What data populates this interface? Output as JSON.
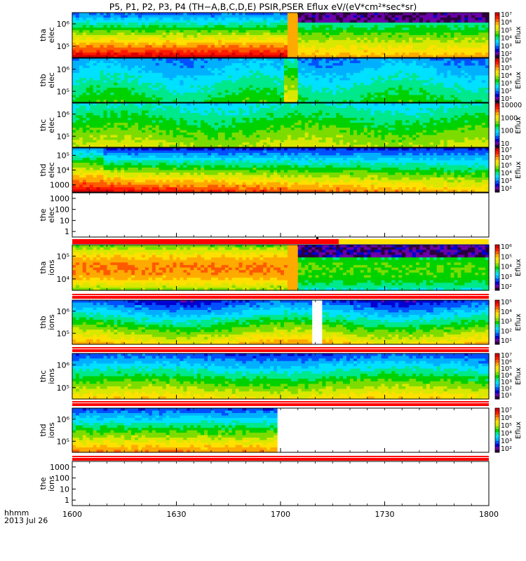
{
  "title": "P5, P1, P2, P3, P4 (TH−A,B,C,D,E) PSIR,PSER Eflux eV/(eV*cm²*sec*sr)",
  "time_axis_label": "hhmm",
  "date_label": "2013 Jul 26",
  "colormap": [
    "#2a003a",
    "#6a00a8",
    "#0000d0",
    "#0050ff",
    "#00b0ff",
    "#00e0ff",
    "#00e88c",
    "#00d200",
    "#7cdc00",
    "#d8e800",
    "#ffe000",
    "#ffaa00",
    "#ff5a00",
    "#ff1a00",
    "#d80000"
  ],
  "chart_data": {
    "type": "heatmap",
    "x_ticks": [
      "1600",
      "1630",
      "1700",
      "1730",
      "1800"
    ],
    "x_range": [
      "16:00",
      "18:00"
    ],
    "y_scale": "log",
    "panels": [
      {
        "probe": "tha",
        "species": "elec",
        "ylim": [
          30000,
          400000
        ],
        "y_ticks": [
          "10⁶",
          "10⁵"
        ],
        "colorbar": {
          "label": "Eflux",
          "ticks": [
            "10⁷",
            "10⁶",
            "10⁵",
            "10⁴",
            "10³",
            "10²"
          ],
          "range": [
            30,
            20000000
          ]
        },
        "data_end": 1.0,
        "gap": null
      },
      {
        "probe": "thb",
        "species": "elec",
        "ylim": [
          30000,
          400000
        ],
        "y_ticks": [
          "10⁶",
          "10⁵"
        ],
        "colorbar": {
          "label": "Eflux",
          "ticks": [
            "10⁶",
            "10⁵",
            "10⁴",
            "10³",
            "10²",
            "10¹"
          ],
          "range": [
            3,
            2000000
          ]
        },
        "data_end": 1.0,
        "gap": null
      },
      {
        "probe": "thc",
        "species": "elec",
        "ylim": [
          30000,
          400000
        ],
        "y_ticks": [
          "10⁶",
          "10⁵"
        ],
        "colorbar": {
          "label": "Eflux",
          "ticks": [
            "10000",
            "1000",
            "100",
            "10"
          ],
          "range": [
            3,
            40000
          ]
        },
        "data_end": 1.0,
        "gap": null
      },
      {
        "probe": "thd",
        "species": "elec",
        "ylim": [
          1000,
          400000
        ],
        "y_ticks": [
          "10⁵",
          "10⁴",
          "1000"
        ],
        "colorbar": {
          "label": "Eflux",
          "ticks": [
            "10⁷",
            "10⁶",
            "10⁵",
            "10⁴",
            "10³",
            "10²"
          ],
          "range": [
            30,
            20000000
          ]
        },
        "data_end": 1.0,
        "gap": null
      },
      {
        "probe": "the",
        "species": "elec",
        "ylim": [
          1,
          1000
        ],
        "y_ticks": [
          "1000",
          "100",
          "10",
          "1"
        ],
        "colorbar": null,
        "data_end": 0.0,
        "gap": null
      },
      {
        "probe": "tha",
        "species": "ions",
        "ylim": [
          30000,
          400000
        ],
        "y_ticks": [
          "10⁵",
          "10⁴"
        ],
        "colorbar": {
          "label": "Eflux",
          "ticks": [
            "10⁶",
            "10⁵",
            "10⁴",
            "10³",
            "10²"
          ],
          "range": [
            50,
            5000000
          ]
        },
        "data_end": 1.0,
        "gap": null
      },
      {
        "probe": "thb",
        "species": "ions",
        "ylim": [
          30000,
          400000
        ],
        "y_ticks": [
          "10⁶",
          "10⁵"
        ],
        "colorbar": {
          "label": "Eflux",
          "ticks": [
            "10⁵",
            "10⁴",
            "10³",
            "10²",
            "10¹"
          ],
          "range": [
            3,
            400000
          ]
        },
        "data_end": 1.0,
        "gap": [
          1.144,
          1.19
        ]
      },
      {
        "probe": "thc",
        "species": "ions",
        "ylim": [
          30000,
          400000
        ],
        "y_ticks": [
          "10⁶",
          "10⁵"
        ],
        "colorbar": {
          "label": "Eflux",
          "ticks": [
            "10⁷",
            "10⁶",
            "10⁵",
            "10⁴",
            "10³",
            "10²",
            "10¹"
          ],
          "range": [
            3,
            20000000
          ]
        },
        "data_end": 1.0,
        "gap": null
      },
      {
        "probe": "thd",
        "species": "ions",
        "ylim": [
          30000,
          400000
        ],
        "y_ticks": [
          "10⁶",
          "10⁵"
        ],
        "colorbar": {
          "label": "Eflux",
          "ticks": [
            "10⁷",
            "10⁶",
            "10⁵",
            "10⁴",
            "10³",
            "10²"
          ],
          "range": [
            30,
            20000000
          ]
        },
        "data_end": 0.49,
        "gap": null
      },
      {
        "probe": "the",
        "species": "ions",
        "ylim": [
          1,
          2000
        ],
        "y_ticks": [
          "1000",
          "100",
          "10",
          "1"
        ],
        "colorbar": null,
        "data_end": 0.0,
        "gap": null
      }
    ]
  }
}
